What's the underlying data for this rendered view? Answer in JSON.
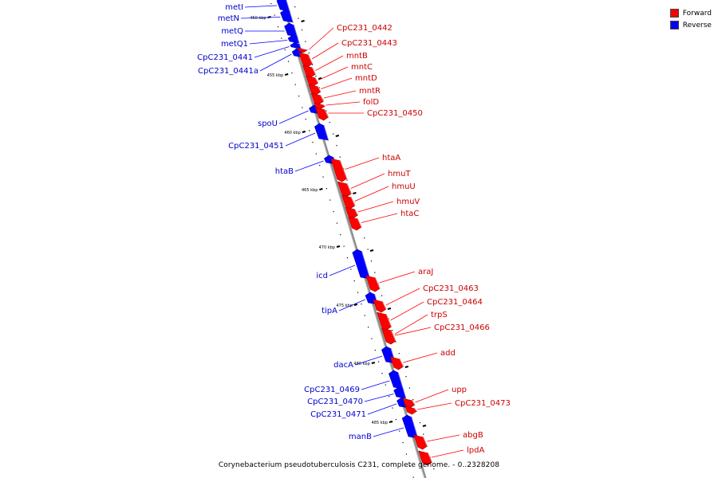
{
  "legend": {
    "items": [
      {
        "label": "Forward",
        "color": "#ff0000"
      },
      {
        "label": "Reverse",
        "color": "#0000ff"
      }
    ]
  },
  "caption": "Corynebacterium pseudotuberculosis C231, complete genome. - 0..2328208",
  "colors": {
    "forward": "#ff0000",
    "forward_label": "#cc0000",
    "reverse": "#0000ff",
    "reverse_label": "#0000cc",
    "axis": "#888888"
  },
  "ticks": [
    "450 kbp",
    "455 kbp",
    "460 kbp",
    "465 kbp",
    "470 kbp",
    "475 kbp",
    "480 kbp",
    "485 kbp"
  ],
  "genes": {
    "reverse": [
      "metI",
      "metN",
      "metQ",
      "metQ1",
      "CpC231_0441",
      "CpC231_0441a",
      "spoU",
      "CpC231_0451",
      "htaB",
      "icd",
      "tipA",
      "dacA",
      "CpC231_0469",
      "CpC231_0470",
      "CpC231_0471",
      "manB"
    ],
    "forward": [
      "CpC231_0442",
      "CpC231_0443",
      "mntB",
      "mntC",
      "mntD",
      "mntR",
      "folD",
      "CpC231_0450",
      "htaA",
      "hmuT",
      "hmuU",
      "hmuV",
      "htaC",
      "araJ",
      "CpC231_0463",
      "CpC231_0464",
      "trpS",
      "CpC231_0466",
      "add",
      "upp",
      "CpC231_0473",
      "abgB",
      "lpdA"
    ]
  }
}
